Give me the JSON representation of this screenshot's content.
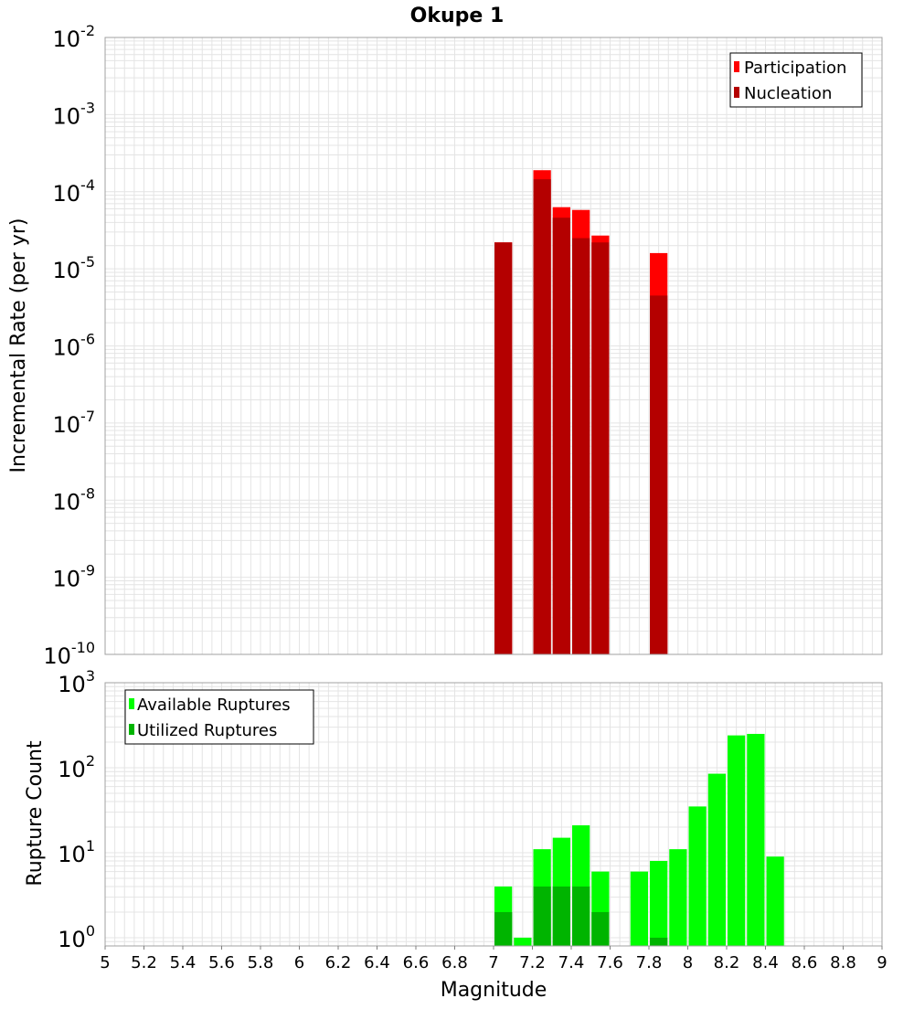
{
  "colors": {
    "participation": "#ff0000",
    "nucleation": "#b40000",
    "available": "#00ff00",
    "utilized": "#00b400",
    "grid": "#e4e4e4",
    "frame": "#a0a0a0",
    "background": "#ffffff"
  },
  "chart_data": [
    {
      "type": "bar",
      "title": "Okupe 1",
      "xlabel": "",
      "ylabel": "Incremental Rate (per yr)",
      "y_scale": "log",
      "xlim": [
        5,
        9
      ],
      "ylim": [
        1e-10,
        0.01
      ],
      "y_tick_exponents": [
        "-10",
        "-9",
        "-8",
        "-7",
        "-6",
        "-5",
        "-4",
        "-3",
        "-2"
      ],
      "grid": true,
      "legend_position": "top-right",
      "bar_width": 0.1,
      "series": [
        {
          "name": "Participation",
          "x": [
            7.05,
            7.25,
            7.35,
            7.45,
            7.55,
            7.85
          ],
          "values": [
            2.2e-05,
            0.00019,
            6.3e-05,
            5.8e-05,
            2.7e-05,
            1.6e-05
          ]
        },
        {
          "name": "Nucleation",
          "x": [
            7.05,
            7.25,
            7.35,
            7.45,
            7.55,
            7.85
          ],
          "values": [
            2.2e-05,
            0.000145,
            4.6e-05,
            2.5e-05,
            2.2e-05,
            4.5e-06
          ]
        }
      ]
    },
    {
      "type": "bar",
      "title": "",
      "xlabel": "Magnitude",
      "ylabel": "Rupture Count",
      "y_scale": "log",
      "xlim": [
        5,
        9
      ],
      "ylim": [
        0.8,
        1000
      ],
      "y_tick_exponents": [
        "0",
        "1",
        "2",
        "3"
      ],
      "x_ticks": [
        "5",
        "5.2",
        "5.4",
        "5.6",
        "5.8",
        "6",
        "6.2",
        "6.4",
        "6.6",
        "6.8",
        "7",
        "7.2",
        "7.4",
        "7.6",
        "7.8",
        "8",
        "8.2",
        "8.4",
        "8.6",
        "8.8",
        "9"
      ],
      "grid": true,
      "legend_position": "top-left",
      "bar_width": 0.1,
      "series": [
        {
          "name": "Available Ruptures",
          "x": [
            7.05,
            7.15,
            7.25,
            7.35,
            7.45,
            7.55,
            7.75,
            7.85,
            7.95,
            8.05,
            8.15,
            8.25,
            8.35,
            8.45
          ],
          "values": [
            4,
            1,
            11,
            15,
            21,
            6,
            6,
            8,
            11,
            35,
            85,
            240,
            250,
            9
          ]
        },
        {
          "name": "Utilized Ruptures",
          "x": [
            7.05,
            7.25,
            7.35,
            7.45,
            7.55,
            7.85
          ],
          "values": [
            2,
            4,
            4,
            4,
            2,
            1
          ]
        }
      ]
    }
  ]
}
